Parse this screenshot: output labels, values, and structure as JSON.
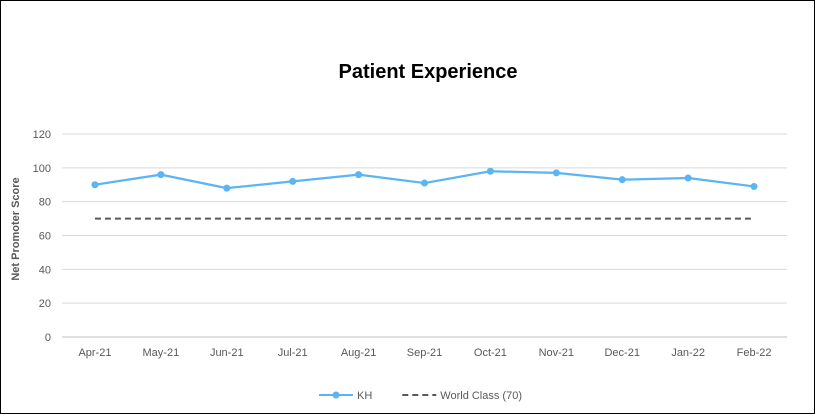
{
  "chart_data": {
    "type": "line",
    "title": "Patient Experience",
    "xlabel": "",
    "ylabel": "Net Promoter Score",
    "categories": [
      "Apr-21",
      "May-21",
      "Jun-21",
      "Jul-21",
      "Aug-21",
      "Sep-21",
      "Oct-21",
      "Nov-21",
      "Dec-21",
      "Jan-22",
      "Feb-22"
    ],
    "ylim": [
      0,
      120
    ],
    "yticks": [
      0,
      20,
      40,
      60,
      80,
      100,
      120
    ],
    "grid": true,
    "legend_position": "bottom",
    "series": [
      {
        "name": "KH",
        "values": [
          90,
          96,
          88,
          92,
          96,
          91,
          98,
          97,
          93,
          94,
          89
        ],
        "color": "#5BB4F3",
        "style": "solid",
        "markers": true
      },
      {
        "name": "World Class (70)",
        "values": [
          70,
          70,
          70,
          70,
          70,
          70,
          70,
          70,
          70,
          70,
          70
        ],
        "color": "#595959",
        "style": "dashed",
        "markers": false
      }
    ]
  }
}
